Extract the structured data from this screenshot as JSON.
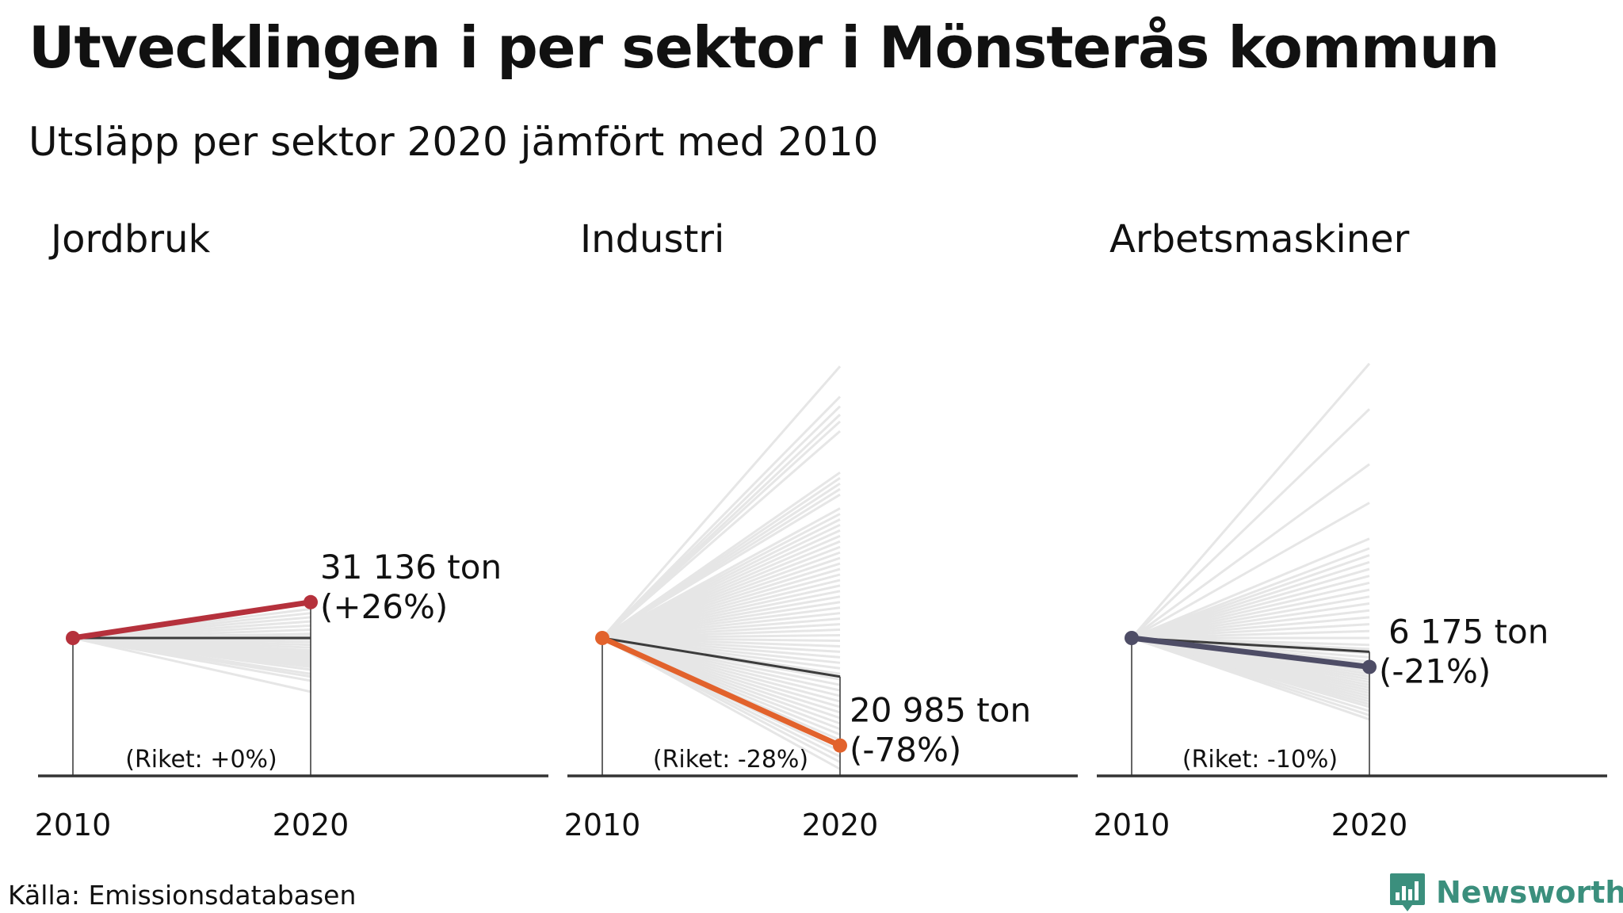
{
  "title": "Utvecklingen i per sektor i Mönsterås kommun",
  "subtitle": "Utsläpp per sektor 2020 jämfört med 2010",
  "source": "Källa: Emissionsdatabasen",
  "brand": "Newsworthy",
  "colors": {
    "context_lines": "#e6e6e6",
    "riket_line": "#3c3c3c",
    "axis": "#333333",
    "brand": "#3b8f7d"
  },
  "chart_data": [
    {
      "type": "line",
      "panel": "Jordbruk",
      "x": [
        2010,
        2020
      ],
      "index_base": 100,
      "ylim": [
        0,
        205
      ],
      "highlight": {
        "name": "Mönsterås",
        "change_pct": 26,
        "value_2020_ton": 31136,
        "label_value": "31 136 ton",
        "label_change": "(+26%)",
        "color": "#b5313c"
      },
      "riket": {
        "change_pct": 0,
        "label": "(Riket: +0%)"
      },
      "other_municipalities_change_pct": [
        21,
        18,
        15,
        12,
        9,
        6,
        3,
        1,
        -1,
        -3,
        -5,
        -7,
        -9,
        -10,
        -11,
        -12,
        -13,
        -14,
        -15,
        -16,
        -17,
        -18,
        -19,
        -20,
        -21,
        -23,
        -26,
        -28,
        -31,
        -39
      ]
    },
    {
      "type": "line",
      "panel": "Industri",
      "x": [
        2010,
        2020
      ],
      "index_base": 100,
      "ylim": [
        0,
        205
      ],
      "highlight": {
        "name": "Mönsterås",
        "change_pct": -78,
        "value_2020_ton": 20985,
        "label_value": "20 985 ton",
        "label_change": "(-78%)",
        "color": "#e2622c"
      },
      "riket": {
        "change_pct": -28,
        "label": "(Riket: -28%)"
      },
      "other_municipalities_change_pct": [
        197,
        175,
        168,
        162,
        157,
        150,
        120,
        116,
        112,
        108,
        104,
        94,
        90,
        86,
        82,
        78,
        74,
        70,
        66,
        62,
        58,
        54,
        50,
        46,
        42,
        38,
        34,
        30,
        26,
        22,
        18,
        14,
        10,
        6,
        2,
        -2,
        -6,
        -10,
        -14,
        -18,
        -22,
        -26,
        -30,
        -34,
        -38,
        -42,
        -46,
        -50,
        -54,
        -58,
        -62,
        -66,
        -70,
        -74,
        -82,
        -86,
        -90,
        -95
      ]
    },
    {
      "type": "line",
      "panel": "Arbetsmaskiner",
      "x": [
        2010,
        2020
      ],
      "index_base": 100,
      "ylim": [
        0,
        205
      ],
      "highlight": {
        "name": "Mönsterås",
        "change_pct": -21,
        "value_2020_ton": 6175,
        "label_value": "6 175 ton",
        "label_change": "(-21%)",
        "color": "#4e4d66"
      },
      "riket": {
        "change_pct": -10,
        "label": "(Riket: -10%)"
      },
      "other_municipalities_change_pct": [
        199,
        166,
        126,
        98,
        72,
        65,
        60,
        55,
        50,
        45,
        40,
        35,
        30,
        25,
        20,
        15,
        10,
        5,
        0,
        -5,
        -8,
        -11,
        -14,
        -17,
        -19,
        -22,
        -24,
        -26,
        -28,
        -30,
        -32,
        -34,
        -36,
        -38,
        -40,
        -42,
        -44,
        -46,
        -48,
        -50,
        -53,
        -56,
        -59
      ]
    }
  ]
}
